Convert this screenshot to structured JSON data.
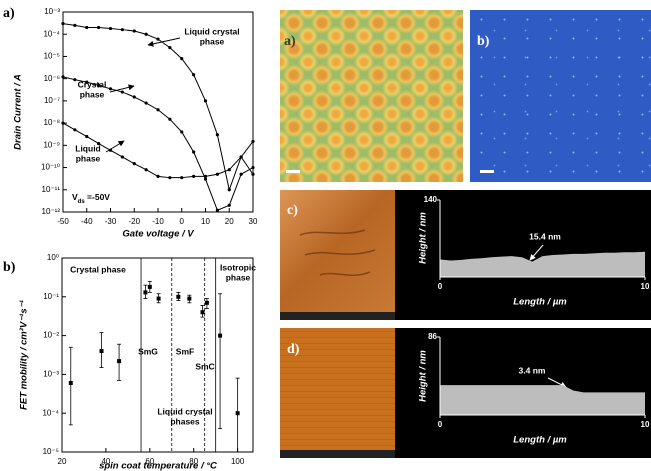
{
  "chart_data": [
    {
      "type": "line",
      "panel_label": "a)",
      "ylabel": "Drain Current / A",
      "xlabel": "Gate voltage / V",
      "log_y": true,
      "color": "#000000",
      "xlim": [
        -50,
        30
      ],
      "xticks": [
        -50,
        -40,
        -30,
        -20,
        -10,
        0,
        10,
        20,
        30
      ],
      "ylim": [
        1e-12,
        0.001
      ],
      "yticks": [
        {
          "value": 1e-12,
          "label": "10⁻¹²"
        },
        {
          "value": 1e-11,
          "label": "10⁻¹¹"
        },
        {
          "value": 1e-10,
          "label": "10⁻¹⁰"
        },
        {
          "value": 1e-09,
          "label": "10⁻⁹"
        },
        {
          "value": 1e-08,
          "label": "10⁻⁸"
        },
        {
          "value": 1e-07,
          "label": "10⁻⁷"
        },
        {
          "value": 1e-06,
          "label": "10⁻⁶"
        },
        {
          "value": 1e-05,
          "label": "10⁻⁵"
        },
        {
          "value": 0.0001,
          "label": "10⁻⁴"
        },
        {
          "value": 0.001,
          "label": "10⁻³"
        }
      ],
      "x": [
        -50,
        -45,
        -40,
        -35,
        -30,
        -25,
        -20,
        -15,
        -10,
        -5,
        0,
        5,
        10,
        15,
        20,
        25,
        30
      ],
      "series": [
        {
          "color": "#000000",
          "values": [
            0.0003,
            0.00025,
            0.0002,
            0.0002,
            0.00018,
            0.00016,
            0.00014,
            0.0001,
            6e-05,
            2.5e-05,
            8e-06,
            1.5e-06,
            1e-07,
            3e-09,
            1e-11,
            3e-10,
            5e-11
          ]
        },
        {
          "color": "#000000",
          "values": [
            1.2e-06,
            9e-07,
            7e-07,
            5e-07,
            3.5e-07,
            2.5e-07,
            1.5e-07,
            8e-08,
            4e-08,
            1.5e-08,
            4e-09,
            5e-10,
            3e-11,
            1.2e-12,
            2e-12,
            5e-11,
            1e-10
          ]
        },
        {
          "color": "#000000",
          "values": [
            1e-08,
            5e-09,
            2.5e-09,
            1.2e-09,
            6e-10,
            3e-10,
            1.5e-10,
            8e-11,
            4e-11,
            3.5e-11,
            3.5e-11,
            4e-11,
            4e-11,
            5e-11,
            8e-11,
            3e-10,
            1.5e-09
          ]
        }
      ],
      "annotations": [
        {
          "lines": [
            "Liquid crystal",
            "phase"
          ]
        },
        {
          "lines": [
            "Crystal",
            "phase"
          ]
        },
        {
          "lines": [
            "Liquid",
            "phase"
          ]
        }
      ],
      "condition": {
        "symbol": "V",
        "subscript": "ds",
        "text": " =-50V"
      }
    },
    {
      "type": "scatter",
      "panel_label": "b)",
      "ylabel": "FET mobility / cm²V⁻¹s⁻¹",
      "xlabel": "spin coat temperature / °C",
      "log_y": true,
      "color": "#000000",
      "xlim": [
        20,
        107
      ],
      "xticks": [
        20,
        40,
        60,
        80,
        100
      ],
      "ylim": [
        1e-05,
        1
      ],
      "yticks": [
        {
          "value": 1e-05,
          "label": "10⁻⁵"
        },
        {
          "value": 0.0001,
          "label": "10⁻⁴"
        },
        {
          "value": 0.001,
          "label": "10⁻³"
        },
        {
          "value": 0.01,
          "label": "10⁻²"
        },
        {
          "value": 0.1,
          "label": "10⁻¹"
        },
        {
          "value": 1,
          "label": "10⁰"
        }
      ],
      "x": [
        24,
        38,
        46,
        58,
        60,
        64,
        73,
        78,
        84,
        86,
        92,
        100
      ],
      "values": [
        0.0006,
        0.004,
        0.0022,
        0.13,
        0.18,
        0.09,
        0.1,
        0.09,
        0.04,
        0.07,
        0.01,
        0.0001
      ],
      "lower": [
        5e-05,
        0.0015,
        0.0007,
        0.09,
        0.13,
        0.07,
        0.08,
        0.07,
        0.03,
        0.05,
        4e-05,
        1e-05
      ],
      "upper": [
        0.005,
        0.012,
        0.006,
        0.2,
        0.25,
        0.12,
        0.13,
        0.11,
        0.06,
        0.09,
        0.12,
        0.0008
      ],
      "boundaries": [
        {
          "x": 56,
          "style": "solid"
        },
        {
          "x": 70,
          "style": "dashed"
        },
        {
          "x": 85,
          "style": "dashed"
        },
        {
          "x": 90,
          "style": "solid"
        }
      ],
      "annotations": [
        {
          "lines": [
            "Crystal phase"
          ]
        },
        {
          "lines": [
            "Isotropic",
            "phase"
          ]
        },
        {
          "lines": [
            "SmG"
          ]
        },
        {
          "lines": [
            "SmF"
          ]
        },
        {
          "lines": [
            "SmC"
          ]
        },
        {
          "lines": [
            "Liquid crystal",
            "phases"
          ]
        }
      ]
    },
    {
      "type": "area",
      "background": "#000000",
      "color": "#bdbdbd",
      "ylabel": "Height / nm",
      "xlabel": "Length / µm",
      "xlim": [
        0,
        10
      ],
      "xticks": [
        0,
        10
      ],
      "ylim": [
        0,
        140
      ],
      "yticks": [
        140
      ],
      "x": [
        0,
        0.5,
        1,
        1.5,
        2,
        2.5,
        3,
        3.5,
        4,
        4.5,
        5,
        5.5,
        6,
        6.5,
        7,
        7.5,
        8,
        8.5,
        9,
        9.5,
        10
      ],
      "values": [
        32,
        30,
        31,
        33,
        34,
        36,
        37,
        38,
        36,
        28,
        38,
        40,
        41,
        42,
        42,
        43,
        44,
        44,
        45,
        45,
        46
      ],
      "annotations": [
        {
          "lines": [
            "15.4 nm"
          ]
        }
      ]
    },
    {
      "type": "area",
      "background": "#000000",
      "color": "#bdbdbd",
      "ylabel": "Height / nm",
      "xlabel": "Length / µm",
      "xlim": [
        0,
        10
      ],
      "xticks": [
        0,
        10
      ],
      "ylim": [
        0,
        86
      ],
      "yticks": [
        86
      ],
      "x": [
        0,
        0.5,
        1,
        1.5,
        2,
        2.5,
        3,
        3.5,
        4,
        4.5,
        5,
        5.5,
        6,
        6.5,
        7,
        7.5,
        8,
        8.5,
        9,
        9.5,
        10
      ],
      "values": [
        33,
        33,
        33,
        33,
        33,
        33,
        33,
        33,
        33,
        33,
        33,
        33,
        33,
        27,
        25,
        25,
        25,
        25,
        25,
        25,
        25
      ],
      "annotations": [
        {
          "lines": [
            "3.4 nm"
          ]
        }
      ]
    }
  ],
  "images": [
    {
      "label": "a)"
    },
    {
      "label": "b)"
    },
    {
      "label": "c)"
    },
    {
      "label": "d)"
    }
  ]
}
